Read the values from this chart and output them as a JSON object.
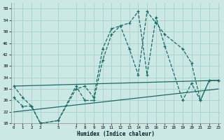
{
  "xlabel": "Humidex (Indice chaleur)",
  "bg_color": "#cce8e4",
  "grid_color": "#aad4d0",
  "line_color": "#1a6b65",
  "series1": {
    "x": [
      0,
      1,
      2,
      3,
      5,
      7,
      8,
      9,
      10,
      11,
      12,
      13,
      14,
      15,
      16,
      17,
      19,
      20,
      21,
      22,
      23
    ],
    "y": [
      31,
      27,
      24,
      18,
      19,
      31,
      26,
      26,
      40,
      49,
      52,
      44,
      35,
      57,
      53,
      49,
      44,
      39,
      26,
      33,
      33
    ]
  },
  "series2": {
    "x": [
      0,
      1,
      2,
      3,
      5,
      7,
      8,
      9,
      10,
      11,
      12,
      13,
      14,
      15,
      16,
      17,
      19,
      20,
      21,
      22,
      23
    ],
    "y": [
      27,
      24,
      24,
      18,
      19,
      30,
      31,
      27,
      44,
      51,
      52,
      53,
      57,
      35,
      55,
      45,
      26,
      32,
      26,
      33,
      33
    ]
  },
  "trend_upper": {
    "x": [
      0,
      23
    ],
    "y": [
      31,
      33
    ]
  },
  "trend_lower": {
    "x": [
      0,
      23
    ],
    "y": [
      22,
      30
    ]
  },
  "ylim": [
    18,
    60
  ],
  "xlim": [
    -0.3,
    23.3
  ],
  "yticks": [
    18,
    22,
    26,
    30,
    34,
    38,
    42,
    46,
    50,
    54,
    58
  ],
  "xticks": [
    0,
    1,
    2,
    3,
    5,
    7,
    8,
    9,
    10,
    11,
    12,
    13,
    14,
    15,
    16,
    17,
    18,
    19,
    20,
    21,
    22,
    23
  ]
}
